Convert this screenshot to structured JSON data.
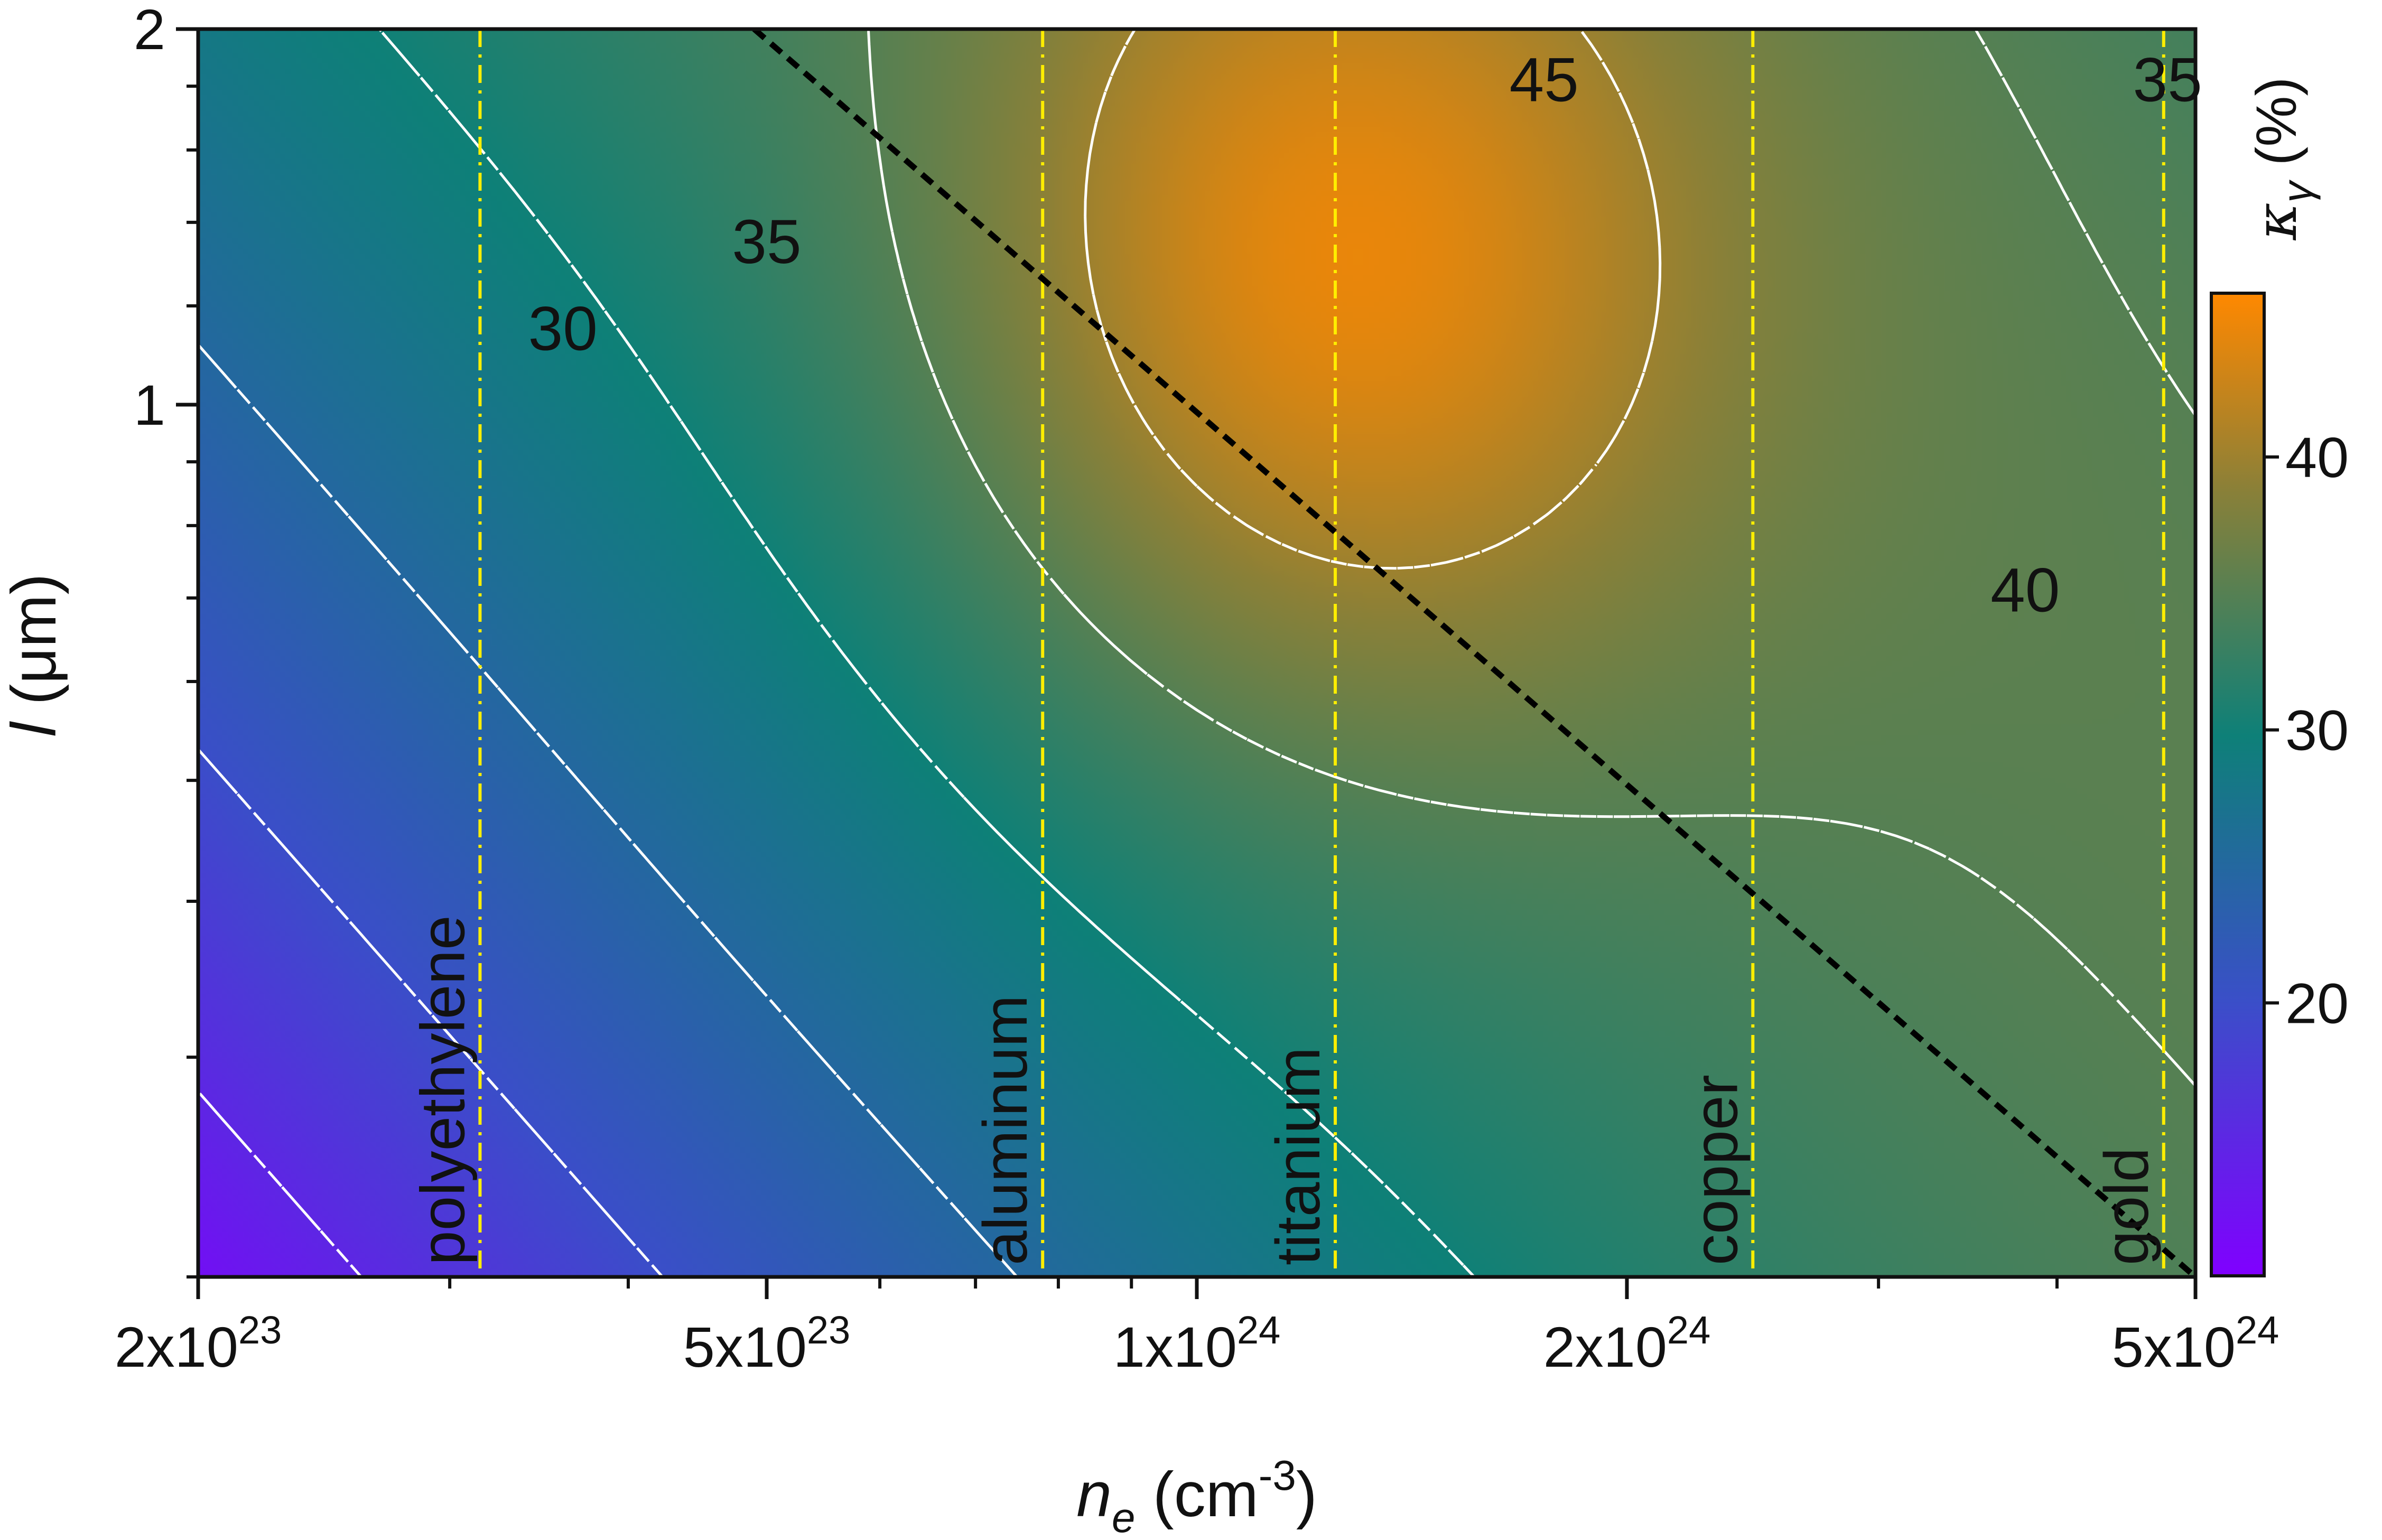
{
  "chart_data": {
    "type": "heatmap",
    "xlabel": {
      "main": "n",
      "sub": "e",
      "rest": " (cm",
      "sup": "-3",
      "end": ")"
    },
    "ylabel": {
      "main": "l",
      "rest": " (μm)"
    },
    "x_scale": "log",
    "y_scale": "log",
    "xlim": [
      2e+23,
      5e+24
    ],
    "ylim": [
      0.2,
      2
    ],
    "x_ticks": [
      {
        "value": 2e+23,
        "mant": "2x10",
        "exp": "23"
      },
      {
        "value": 5e+23,
        "mant": "5x10",
        "exp": "23"
      },
      {
        "value": 1e+24,
        "mant": "1x10",
        "exp": "24"
      },
      {
        "value": 2e+24,
        "mant": "2x10",
        "exp": "24"
      },
      {
        "value": 5e+24,
        "mant": "5x10",
        "exp": "24"
      }
    ],
    "y_ticks": [
      {
        "value": 1,
        "label": "1"
      },
      {
        "value": 2,
        "label": "2"
      }
    ],
    "colorbar": {
      "label_symbol": "κ",
      "label_sub": "γ",
      "label_rest": " (%)",
      "range": [
        10,
        46
      ],
      "ticks": [
        20,
        30,
        40
      ],
      "colors": [
        "#8000ff",
        "#3a4fc8",
        "#0e8078",
        "#8a8038",
        "#ff8800"
      ]
    },
    "contours": [
      {
        "level": 30,
        "label": "30",
        "label_at": [
          3.6e+23,
          1.15
        ]
      },
      {
        "level": 35,
        "label": "35",
        "label_at": [
          5e+23,
          1.35
        ]
      },
      {
        "level": 40,
        "label": "40",
        "label_at": [
          3.8e+24,
          0.71
        ]
      },
      {
        "level": 45,
        "label": "45",
        "label_at": [
          1.75e+24,
          1.82
        ]
      },
      {
        "level": 35,
        "label": "35",
        "label_at": [
          4.78e+24,
          1.82
        ]
      }
    ],
    "materials": [
      {
        "name": "polyethylene",
        "ne": 3.15e+23
      },
      {
        "name": "aluminum",
        "ne": 7.8e+23
      },
      {
        "name": "titanium",
        "ne": 1.25e+24
      },
      {
        "name": "copper",
        "ne": 2.45e+24
      },
      {
        "name": "gold",
        "ne": 4.75e+24
      }
    ],
    "diagonal_line": {
      "from": [
        4.9e+23,
        2.0
      ],
      "to": [
        5e+24,
        0.2
      ]
    }
  }
}
